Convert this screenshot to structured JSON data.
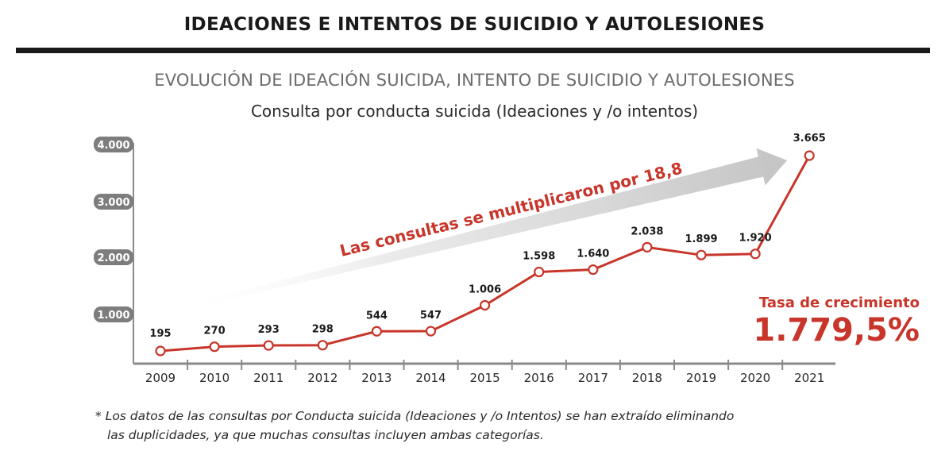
{
  "header": {
    "title": "IDEACIONES E INTENTOS DE SUICIDIO Y AUTOLESIONES"
  },
  "section_title": "EVOLUCIÓN DE IDEACIÓN SUICIDA, INTENTO DE SUICIDIO Y AUTOLESIONES",
  "chart_data": {
    "type": "line",
    "title": "Consulta por conducta suicida (Ideaciones y /o intentos)",
    "xlabel": "",
    "ylabel": "",
    "categories": [
      "2009",
      "2010",
      "2011",
      "2012",
      "2013",
      "2014",
      "2015",
      "2016",
      "2017",
      "2018",
      "2019",
      "2020",
      "2021"
    ],
    "values": [
      195,
      270,
      293,
      298,
      544,
      547,
      1006,
      1598,
      1640,
      2038,
      1899,
      1920,
      3665
    ],
    "value_labels": [
      "195",
      "270",
      "293",
      "298",
      "544",
      "547",
      "1.006",
      "1.598",
      "1.640",
      "2.038",
      "1.899",
      "1.920",
      "3.665"
    ],
    "yticks": [
      1000,
      2000,
      3000,
      4000
    ],
    "ytick_labels": [
      "1.000",
      "2.000",
      "3.000",
      "4.000"
    ],
    "ylim": [
      0,
      4000
    ],
    "grid": false,
    "legend": "none",
    "colors": {
      "line": "#c8352a",
      "arrow": "#cfcfcf",
      "axis": "#8a8a8a",
      "tick_badge": "#7d7d7d",
      "accent_text": "#c8352a"
    },
    "annotations": {
      "arrow_text": "Las consultas se multiplicaron por 18,8",
      "growth_label": "Tasa de crecimiento",
      "growth_value": "1.779,5%"
    }
  },
  "footnote": {
    "line1": "* Los datos de las consultas por Conducta suicida (Ideaciones y /o Intentos) se han extraído eliminando",
    "line2": "las duplicidades, ya que muchas consultas incluyen ambas categorías."
  }
}
